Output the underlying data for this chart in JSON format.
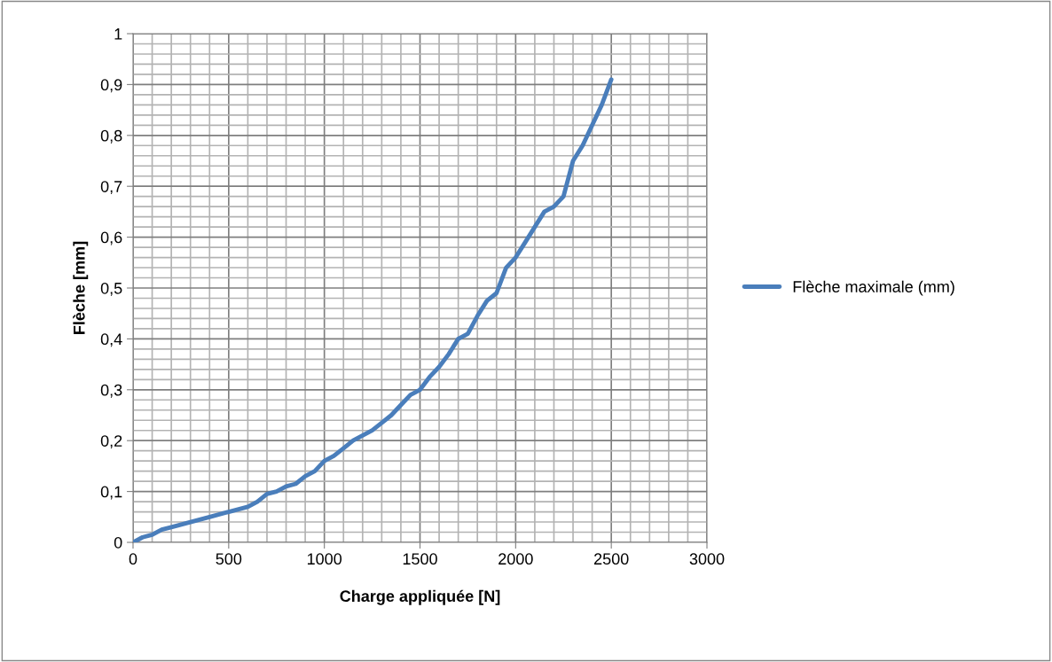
{
  "chart_data": {
    "type": "line",
    "xlabel": "Charge appliquée [N]",
    "ylabel": "Flèche [mm]",
    "x": [
      0,
      50,
      100,
      150,
      200,
      300,
      400,
      500,
      600,
      650,
      700,
      750,
      800,
      850,
      900,
      950,
      1000,
      1050,
      1100,
      1150,
      1200,
      1250,
      1300,
      1350,
      1400,
      1450,
      1500,
      1550,
      1600,
      1650,
      1700,
      1750,
      1800,
      1850,
      1900,
      1950,
      2000,
      2050,
      2100,
      2150,
      2200,
      2250,
      2300,
      2350,
      2400,
      2450,
      2500
    ],
    "series": [
      {
        "name": "Flèche maximale (mm)",
        "color": "#4a7ebb",
        "values": [
          0,
          0.01,
          0.015,
          0.025,
          0.03,
          0.04,
          0.05,
          0.06,
          0.07,
          0.08,
          0.095,
          0.1,
          0.11,
          0.115,
          0.13,
          0.14,
          0.16,
          0.17,
          0.185,
          0.2,
          0.21,
          0.22,
          0.235,
          0.25,
          0.27,
          0.29,
          0.3,
          0.325,
          0.345,
          0.37,
          0.4,
          0.41,
          0.445,
          0.475,
          0.49,
          0.54,
          0.56,
          0.59,
          0.62,
          0.65,
          0.66,
          0.68,
          0.75,
          0.78,
          0.82,
          0.86,
          0.91
        ]
      }
    ],
    "xlim": [
      0,
      3000
    ],
    "xticks": [
      0,
      500,
      1000,
      1500,
      2000,
      2500,
      3000
    ],
    "ylim": [
      0,
      1
    ],
    "yticks": [
      0,
      {
        "value": 0.1,
        "label": "0,1"
      },
      {
        "value": 0.2,
        "label": "0,2"
      },
      {
        "value": 0.3,
        "label": "0,3"
      },
      {
        "value": 0.4,
        "label": "0,4"
      },
      {
        "value": 0.5,
        "label": "0,5"
      },
      {
        "value": 0.6,
        "label": "0,6"
      },
      {
        "value": 0.7,
        "label": "0,7"
      },
      {
        "value": 0.8,
        "label": "0,8"
      },
      {
        "value": 0.9,
        "label": "0,9"
      },
      1
    ],
    "grid": true,
    "legend": "right",
    "marker": "none",
    "line_style": "solid"
  }
}
